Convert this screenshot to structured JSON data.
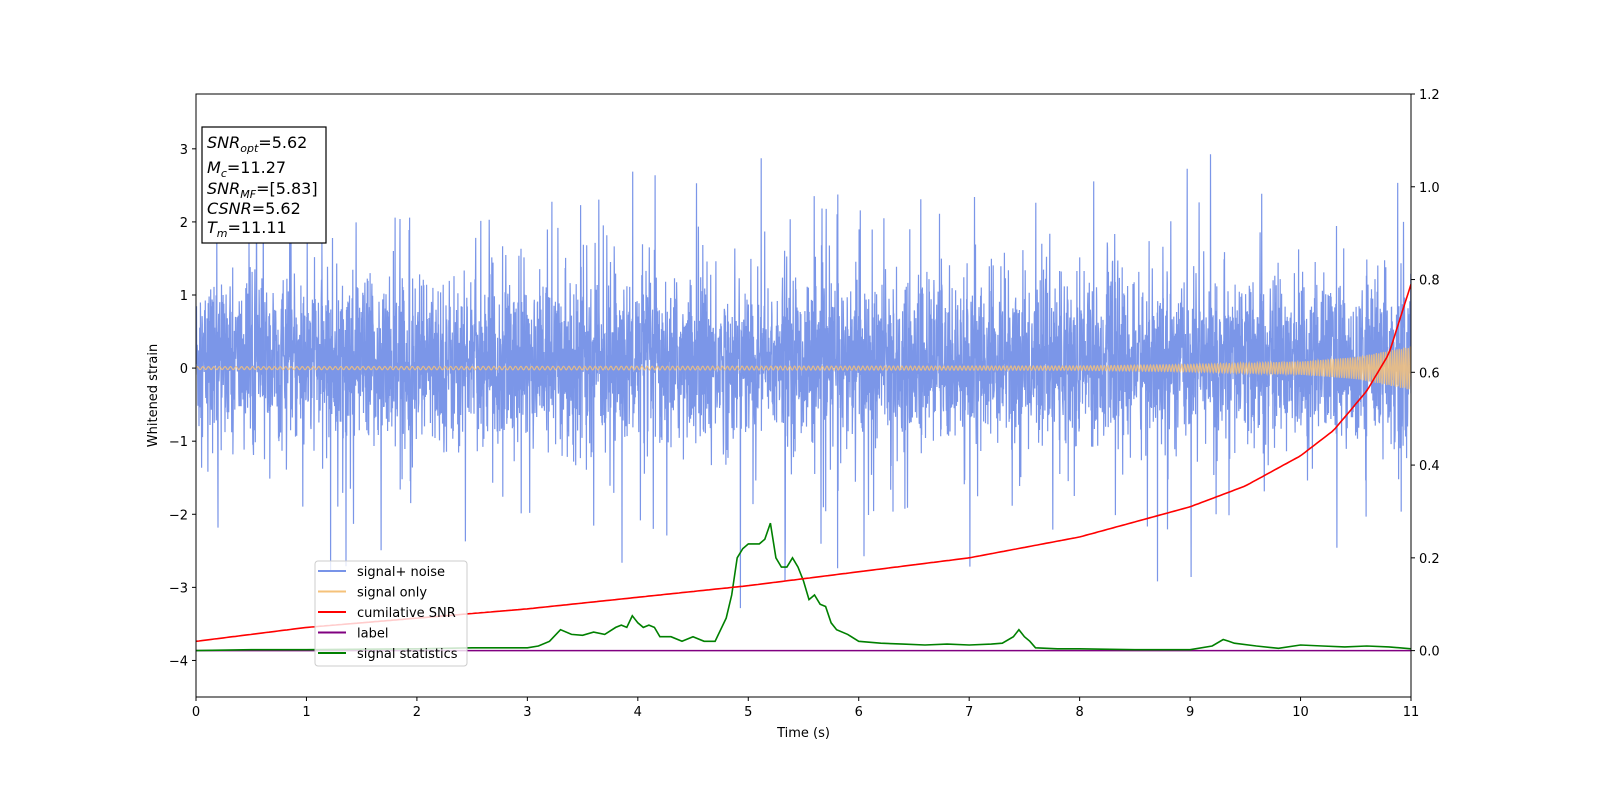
{
  "chart_data": {
    "type": "line",
    "xlabel": "Time (s)",
    "ylabel": "Whitened strain",
    "xlim": [
      0,
      11
    ],
    "ylim_left": [
      -4.5,
      3.75
    ],
    "ylim_right": [
      -0.1,
      1.2
    ],
    "x_ticks": [
      "0",
      "1",
      "2",
      "3",
      "4",
      "5",
      "6",
      "7",
      "8",
      "9",
      "10",
      "11"
    ],
    "y_ticks_left": [
      "3",
      "2",
      "1",
      "0",
      "−1",
      "−2",
      "−3",
      "−4"
    ],
    "y_ticks_right": [
      "1.2",
      "1.0",
      "0.8",
      "0.6",
      "0.4",
      "0.2",
      "0.0"
    ],
    "info_box": {
      "lines": [
        {
          "sym": "SNR",
          "sub": "opt",
          "rest": "=5.62"
        },
        {
          "sym": "M",
          "sub": "c",
          "rest": "=11.27"
        },
        {
          "sym": "SNR",
          "sub": "MF",
          "rest": "=[5.83]"
        },
        {
          "sym": "CSNR",
          "sub": "",
          "rest": "=5.62"
        },
        {
          "sym": "T",
          "sub": "m",
          "rest": "=11.11"
        }
      ]
    },
    "legend": {
      "placement": "lower-left",
      "entries": [
        {
          "label": "signal+ noise",
          "color": "#7894e8"
        },
        {
          "label": "signal only",
          "color": "#f5c27a"
        },
        {
          "label": "cumilative SNR",
          "color": "#ff0000"
        },
        {
          "label": "label",
          "color": "#800080"
        },
        {
          "label": "signal statistics",
          "color": "#008000"
        }
      ]
    },
    "series": [
      {
        "name": "signal+ noise",
        "axis": "left",
        "color": "#7894e8",
        "description_range": [
          -4.15,
          3.38
        ],
        "typical_envelope": [
          -1.8,
          2.0
        ]
      },
      {
        "name": "signal only",
        "axis": "left",
        "color": "#f5c27a",
        "amplitude_at_x": {
          "x": [
            0,
            8,
            9,
            10,
            10.5,
            11
          ],
          "y": [
            0.02,
            0.03,
            0.05,
            0.09,
            0.15,
            0.3
          ]
        }
      },
      {
        "name": "cumilative SNR",
        "axis": "right",
        "color": "#ff0000",
        "x": [
          0,
          1,
          2,
          3,
          4,
          5,
          6,
          7,
          8,
          9,
          9.5,
          10,
          10.3,
          10.6,
          10.8,
          11
        ],
        "y": [
          0.02,
          0.05,
          0.07,
          0.09,
          0.115,
          0.14,
          0.17,
          0.2,
          0.245,
          0.31,
          0.355,
          0.42,
          0.475,
          0.56,
          0.64,
          0.79
        ]
      },
      {
        "name": "label",
        "axis": "right",
        "color": "#800080",
        "x": [
          0,
          11
        ],
        "y": [
          0.0,
          0.0
        ]
      },
      {
        "name": "signal statistics",
        "axis": "right",
        "color": "#008000",
        "x": [
          0,
          0.5,
          1,
          2,
          2.5,
          3,
          3.1,
          3.2,
          3.3,
          3.4,
          3.5,
          3.6,
          3.7,
          3.8,
          3.85,
          3.9,
          3.95,
          4.0,
          4.05,
          4.1,
          4.15,
          4.2,
          4.3,
          4.4,
          4.5,
          4.6,
          4.7,
          4.8,
          4.85,
          4.9,
          4.95,
          5.0,
          5.05,
          5.1,
          5.15,
          5.2,
          5.25,
          5.3,
          5.35,
          5.4,
          5.45,
          5.5,
          5.55,
          5.6,
          5.65,
          5.7,
          5.75,
          5.8,
          5.9,
          6.0,
          6.2,
          6.4,
          6.6,
          6.8,
          7.0,
          7.2,
          7.3,
          7.4,
          7.45,
          7.5,
          7.55,
          7.6,
          7.8,
          8.0,
          8.2,
          8.5,
          9.0,
          9.2,
          9.3,
          9.35,
          9.4,
          9.6,
          9.8,
          10.0,
          10.2,
          10.4,
          10.6,
          10.8,
          11.0
        ],
        "y": [
          0.0,
          0.002,
          0.002,
          0.004,
          0.006,
          0.006,
          0.01,
          0.02,
          0.045,
          0.035,
          0.033,
          0.04,
          0.035,
          0.05,
          0.055,
          0.05,
          0.075,
          0.06,
          0.05,
          0.055,
          0.05,
          0.03,
          0.03,
          0.02,
          0.03,
          0.02,
          0.02,
          0.07,
          0.12,
          0.2,
          0.22,
          0.23,
          0.23,
          0.23,
          0.24,
          0.275,
          0.2,
          0.18,
          0.18,
          0.2,
          0.18,
          0.15,
          0.11,
          0.12,
          0.1,
          0.095,
          0.06,
          0.045,
          0.035,
          0.02,
          0.016,
          0.014,
          0.012,
          0.014,
          0.012,
          0.014,
          0.016,
          0.03,
          0.045,
          0.03,
          0.02,
          0.006,
          0.004,
          0.004,
          0.003,
          0.002,
          0.002,
          0.01,
          0.024,
          0.02,
          0.016,
          0.01,
          0.005,
          0.012,
          0.01,
          0.008,
          0.01,
          0.008,
          0.004
        ]
      }
    ]
  }
}
